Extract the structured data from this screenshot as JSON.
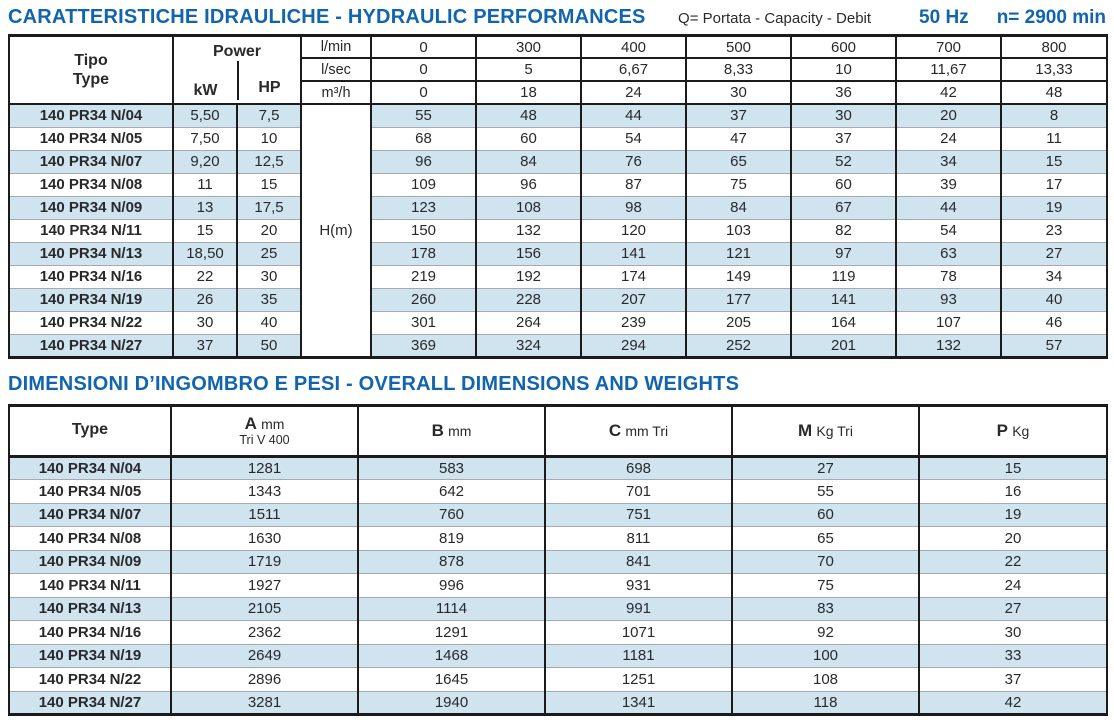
{
  "colors": {
    "accent_blue": "#1264ae",
    "row_highlight": "#cfe4ef",
    "grid_black": "#1b1b1c",
    "grid_gray": "#a4aab0"
  },
  "hydraulic": {
    "title": "CARATTERISTICHE IDRAULICHE - HYDRAULIC PERFORMANCES",
    "subtitle": "Q= Portata - Capacity - Debit",
    "frequency": "50 Hz",
    "speed": "n= 2900 min",
    "tipo_label": "Tipo",
    "type_label": "Type",
    "power_label": "Power",
    "kw_label": "kW",
    "hp_label": "HP",
    "head_label": "H(m)",
    "flow_rows": [
      {
        "unit": "l/min",
        "values": [
          "0",
          "300",
          "400",
          "500",
          "600",
          "700",
          "800"
        ]
      },
      {
        "unit": "l/sec",
        "values": [
          "0",
          "5",
          "6,67",
          "8,33",
          "10",
          "11,67",
          "13,33"
        ]
      },
      {
        "unit": "m³/h",
        "values": [
          "0",
          "18",
          "24",
          "30",
          "36",
          "42",
          "48"
        ]
      }
    ],
    "rows": [
      {
        "model": "140 PR34 N/04",
        "kw": "5,50",
        "hp": "7,5",
        "heads": [
          "55",
          "48",
          "44",
          "37",
          "30",
          "20",
          "8"
        ]
      },
      {
        "model": "140 PR34 N/05",
        "kw": "7,50",
        "hp": "10",
        "heads": [
          "68",
          "60",
          "54",
          "47",
          "37",
          "24",
          "11"
        ]
      },
      {
        "model": "140 PR34 N/07",
        "kw": "9,20",
        "hp": "12,5",
        "heads": [
          "96",
          "84",
          "76",
          "65",
          "52",
          "34",
          "15"
        ]
      },
      {
        "model": "140 PR34 N/08",
        "kw": "11",
        "hp": "15",
        "heads": [
          "109",
          "96",
          "87",
          "75",
          "60",
          "39",
          "17"
        ]
      },
      {
        "model": "140 PR34 N/09",
        "kw": "13",
        "hp": "17,5",
        "heads": [
          "123",
          "108",
          "98",
          "84",
          "67",
          "44",
          "19"
        ]
      },
      {
        "model": "140 PR34 N/11",
        "kw": "15",
        "hp": "20",
        "heads": [
          "150",
          "132",
          "120",
          "103",
          "82",
          "54",
          "23"
        ]
      },
      {
        "model": "140 PR34 N/13",
        "kw": "18,50",
        "hp": "25",
        "heads": [
          "178",
          "156",
          "141",
          "121",
          "97",
          "63",
          "27"
        ]
      },
      {
        "model": "140 PR34 N/16",
        "kw": "22",
        "hp": "30",
        "heads": [
          "219",
          "192",
          "174",
          "149",
          "119",
          "78",
          "34"
        ]
      },
      {
        "model": "140 PR34 N/19",
        "kw": "26",
        "hp": "35",
        "heads": [
          "260",
          "228",
          "207",
          "177",
          "141",
          "93",
          "40"
        ]
      },
      {
        "model": "140 PR34 N/22",
        "kw": "30",
        "hp": "40",
        "heads": [
          "301",
          "264",
          "239",
          "205",
          "164",
          "107",
          "46"
        ]
      },
      {
        "model": "140 PR34 N/27",
        "kw": "37",
        "hp": "50",
        "heads": [
          "369",
          "324",
          "294",
          "252",
          "201",
          "132",
          "57"
        ]
      }
    ]
  },
  "dimensions": {
    "title": "DIMENSIONI D’INGOMBRO E PESI - OVERALL DIMENSIONS AND WEIGHTS",
    "type_label": "Type",
    "columns": [
      {
        "letter": "A",
        "unit": "mm",
        "sub": "Tri V 400"
      },
      {
        "letter": "B",
        "unit": "mm",
        "sub": ""
      },
      {
        "letter": "C",
        "unit": "mm Tri",
        "sub": ""
      },
      {
        "letter": "M",
        "unit": "Kg Tri",
        "sub": ""
      },
      {
        "letter": "P",
        "unit": "Kg",
        "sub": ""
      }
    ],
    "rows": [
      {
        "model": "140 PR34 N/04",
        "values": [
          "1281",
          "583",
          "698",
          "27",
          "15"
        ]
      },
      {
        "model": "140 PR34 N/05",
        "values": [
          "1343",
          "642",
          "701",
          "55",
          "16"
        ]
      },
      {
        "model": "140 PR34 N/07",
        "values": [
          "1511",
          "760",
          "751",
          "60",
          "19"
        ]
      },
      {
        "model": "140 PR34 N/08",
        "values": [
          "1630",
          "819",
          "811",
          "65",
          "20"
        ]
      },
      {
        "model": "140 PR34 N/09",
        "values": [
          "1719",
          "878",
          "841",
          "70",
          "22"
        ]
      },
      {
        "model": "140 PR34 N/11",
        "values": [
          "1927",
          "996",
          "931",
          "75",
          "24"
        ]
      },
      {
        "model": "140 PR34 N/13",
        "values": [
          "2105",
          "1114",
          "991",
          "83",
          "27"
        ]
      },
      {
        "model": "140 PR34 N/16",
        "values": [
          "2362",
          "1291",
          "1071",
          "92",
          "30"
        ]
      },
      {
        "model": "140 PR34 N/19",
        "values": [
          "2649",
          "1468",
          "1181",
          "100",
          "33"
        ]
      },
      {
        "model": "140 PR34 N/22",
        "values": [
          "2896",
          "1645",
          "1251",
          "108",
          "37"
        ]
      },
      {
        "model": "140 PR34 N/27",
        "values": [
          "3281",
          "1940",
          "1341",
          "118",
          "42"
        ]
      }
    ]
  }
}
